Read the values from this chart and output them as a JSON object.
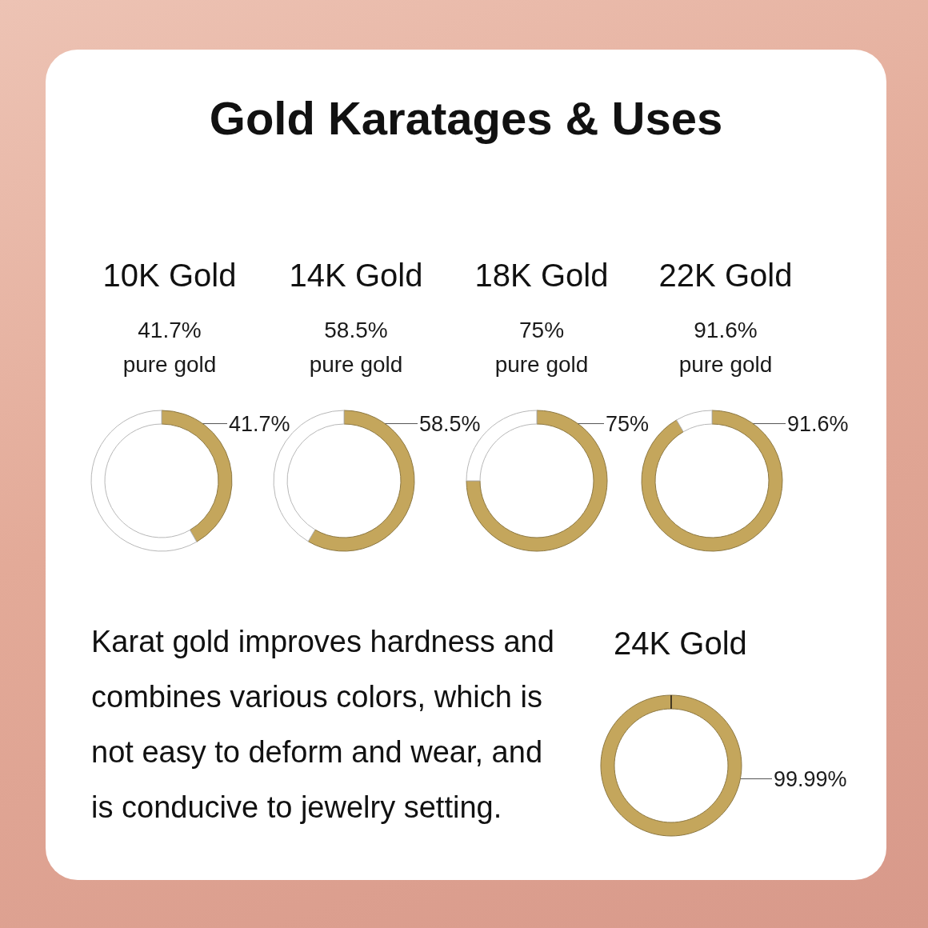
{
  "chart_data": [
    {
      "type": "other",
      "title": "Gold Karatages & Uses"
    },
    {
      "type": "donut",
      "title": "10K Gold",
      "subtitle": "41.7%\npure gold",
      "categories": [
        null,
        null
      ],
      "values": [
        41.7,
        58.3
      ],
      "colors": [
        "#c4a65c",
        "#ffffff"
      ],
      "value_labels": [
        "41.7%",
        null
      ]
    },
    {
      "type": "donut",
      "title": "14K Gold",
      "subtitle": "58.5%\npure gold",
      "categories": [
        null,
        null
      ],
      "values": [
        58.5,
        41.5
      ],
      "colors": [
        "#c4a65c",
        "#ffffff"
      ],
      "value_labels": [
        "58.5%",
        null
      ]
    },
    {
      "type": "donut",
      "title": "18K Gold",
      "subtitle": "75%\npure gold",
      "categories": [
        null,
        null
      ],
      "values": [
        75,
        25
      ],
      "colors": [
        "#c4a65c",
        "#ffffff"
      ],
      "value_labels": [
        "75%",
        null
      ]
    },
    {
      "type": "donut",
      "title": "22K Gold",
      "subtitle": "91.6%\npure gold",
      "categories": [
        null,
        null
      ],
      "values": [
        91.6,
        8.4
      ],
      "colors": [
        "#c4a65c",
        "#ffffff"
      ],
      "value_labels": [
        "91.6%",
        null
      ]
    },
    {
      "type": "other",
      "annotations": [
        "Karat gold improves hardness and combines various colors, which is not easy to deform and wear, and is conducive to jewelry setting."
      ]
    },
    {
      "type": "donut",
      "title": "24K Gold",
      "categories": [
        null,
        null
      ],
      "values": [
        99.99,
        0.01
      ],
      "colors": [
        "#c4a65c",
        "#3b2f1e"
      ],
      "value_labels": [
        "99.99%",
        null
      ]
    }
  ]
}
